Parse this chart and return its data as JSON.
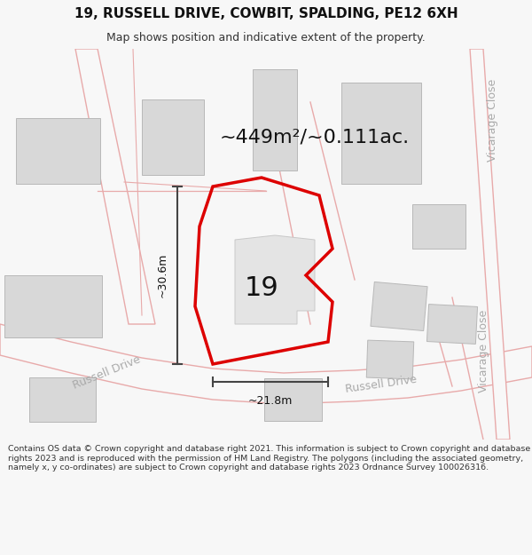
{
  "title": "19, RUSSELL DRIVE, COWBIT, SPALDING, PE12 6XH",
  "subtitle": "Map shows position and indicative extent of the property.",
  "area_text": "~449m²/~0.111ac.",
  "dim_height": "~30.6m",
  "dim_width": "~21.8m",
  "property_number": "19",
  "footer": "Contains OS data © Crown copyright and database right 2021. This information is subject to Crown copyright and database rights 2023 and is reproduced with the permission of HM Land Registry. The polygons (including the associated geometry, namely x, y co-ordinates) are subject to Crown copyright and database rights 2023 Ordnance Survey 100026316.",
  "bg_color": "#f7f7f7",
  "map_bg": "#ffffff",
  "building_fill": "#d8d8d8",
  "building_edge": "#b8b8b8",
  "highlight_edge": "#dd0000",
  "road_line_color": "#e8aaaa",
  "dim_color": "#444444",
  "label_color": "#aaaaaa",
  "text_color": "#1a1a1a",
  "title_size": 11,
  "subtitle_size": 9,
  "area_size": 16,
  "dim_label_size": 9,
  "prop_label_size": 22,
  "road_label_size": 9,
  "footer_size": 6.8
}
